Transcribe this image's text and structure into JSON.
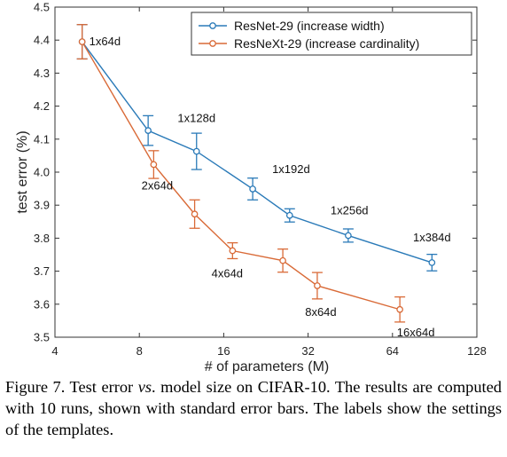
{
  "chart_data": {
    "type": "line",
    "xlabel": "# of parameters (M)",
    "ylabel": "test error (%)",
    "x_scale": "log2",
    "xlim": [
      4,
      128
    ],
    "ylim": [
      3.5,
      4.5
    ],
    "x_ticks": [
      4,
      8,
      16,
      32,
      64,
      128
    ],
    "x_tick_labels": [
      "4",
      "8",
      "16",
      "32",
      "64",
      "128"
    ],
    "y_ticks": [
      3.5,
      3.6,
      3.7,
      3.8,
      3.9,
      4.0,
      4.1,
      4.2,
      4.3,
      4.4,
      4.5
    ],
    "y_tick_labels": [
      "3.5",
      "3.6",
      "3.7",
      "3.8",
      "3.9",
      "4.0",
      "4.1",
      "4.2",
      "4.3",
      "4.4",
      "4.5"
    ],
    "grid": false,
    "legend_position": "top-right",
    "series": [
      {
        "name": "ResNet-29 (increase width)",
        "color": "#2a7ab8",
        "points": [
          {
            "x": 5.0,
            "y": 4.395,
            "err": 0.052,
            "label": "1x64d"
          },
          {
            "x": 8.6,
            "y": 4.126,
            "err": 0.045,
            "label": ""
          },
          {
            "x": 12.8,
            "y": 4.063,
            "err": 0.055,
            "label": "1x128d"
          },
          {
            "x": 20.3,
            "y": 3.949,
            "err": 0.033,
            "label": "1x192d"
          },
          {
            "x": 27.5,
            "y": 3.869,
            "err": 0.02,
            "label": ""
          },
          {
            "x": 44.5,
            "y": 3.808,
            "err": 0.02,
            "label": "1x256d"
          },
          {
            "x": 88.5,
            "y": 3.726,
            "err": 0.025,
            "label": "1x384d"
          }
        ]
      },
      {
        "name": "ResNeXt-29 (increase cardinality)",
        "color": "#d96a37",
        "points": [
          {
            "x": 5.0,
            "y": 4.395,
            "err": 0.052,
            "label": ""
          },
          {
            "x": 9.0,
            "y": 4.023,
            "err": 0.042,
            "label": "2x64d"
          },
          {
            "x": 12.6,
            "y": 3.873,
            "err": 0.043,
            "label": ""
          },
          {
            "x": 17.2,
            "y": 3.762,
            "err": 0.024,
            "label": "4x64d"
          },
          {
            "x": 26.0,
            "y": 3.732,
            "err": 0.035,
            "label": ""
          },
          {
            "x": 34.5,
            "y": 3.656,
            "err": 0.04,
            "label": "8x64d"
          },
          {
            "x": 68.0,
            "y": 3.584,
            "err": 0.038,
            "label": "16x64d"
          }
        ]
      }
    ]
  },
  "caption": {
    "text": "Figure 7. Test error vs. model size on CIFAR-10. The results are computed with 10 runs, shown with standard error bars. The labels show the settings of the templates."
  }
}
